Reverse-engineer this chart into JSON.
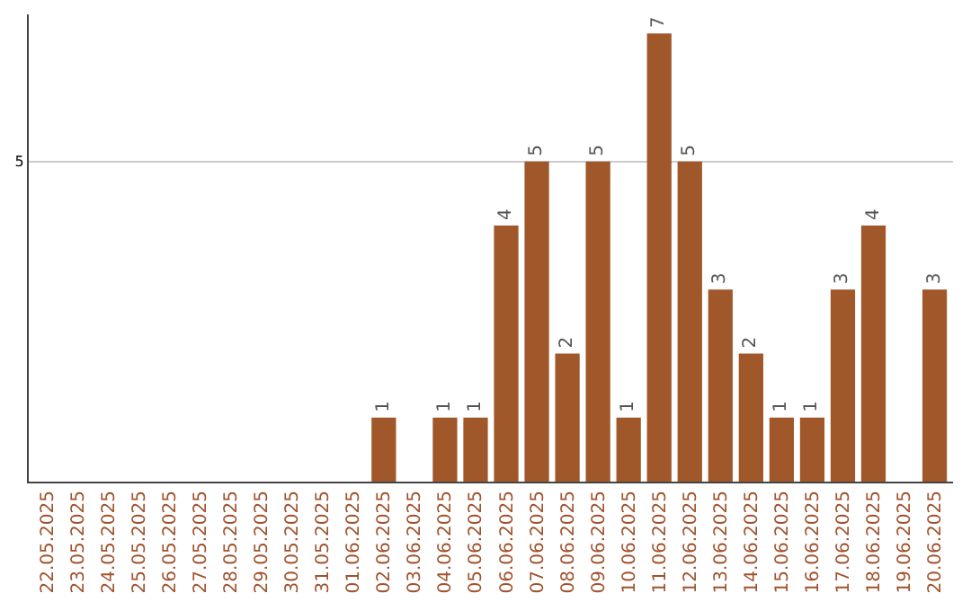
{
  "chart_data": {
    "type": "bar",
    "categories": [
      "22.05.2025",
      "23.05.2025",
      "24.05.2025",
      "25.05.2025",
      "26.05.2025",
      "27.05.2025",
      "28.05.2025",
      "29.05.2025",
      "30.05.2025",
      "31.05.2025",
      "01.06.2025",
      "02.06.2025",
      "03.06.2025",
      "04.06.2025",
      "05.06.2025",
      "06.06.2025",
      "07.06.2025",
      "08.06.2025",
      "09.06.2025",
      "10.06.2025",
      "11.06.2025",
      "12.06.2025",
      "13.06.2025",
      "14.06.2025",
      "15.06.2025",
      "16.06.2025",
      "17.06.2025",
      "18.06.2025",
      "19.06.2025",
      "20.06.2025"
    ],
    "values": [
      0,
      0,
      0,
      0,
      0,
      0,
      0,
      0,
      0,
      0,
      0,
      1,
      0,
      1,
      1,
      4,
      5,
      2,
      5,
      1,
      7,
      5,
      3,
      2,
      1,
      1,
      3,
      4,
      0,
      3
    ],
    "value_labels": [
      null,
      null,
      null,
      null,
      null,
      null,
      null,
      null,
      null,
      null,
      null,
      "1",
      null,
      "1",
      "1",
      "4",
      "5",
      "2",
      "5",
      "1",
      "7",
      "5",
      "3",
      "2",
      "1",
      "1",
      "3",
      "4",
      null,
      "3"
    ],
    "color": "#a0572a",
    "ylim": [
      0,
      7.3
    ],
    "yticks": [
      5
    ],
    "grid": "y",
    "legend": false
  }
}
